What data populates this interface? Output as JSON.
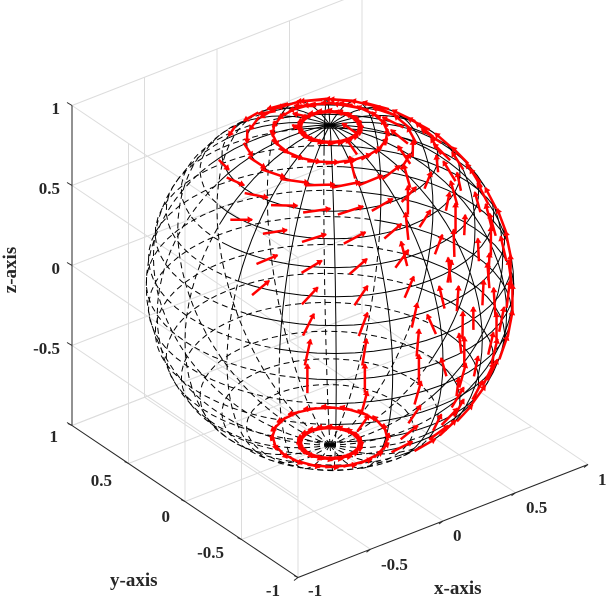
{
  "chart_data": {
    "type": "quiver3d",
    "title": "",
    "description": "Unit sphere wireframe (mesh) with red tangent vector field arrows (quiver3) circulating around the z-axis near the poles and pointing along meridians near the equator",
    "xlabel": "x-axis",
    "ylabel": "y-axis",
    "zlabel": "z-axis",
    "xlim": [
      -1,
      1
    ],
    "ylim": [
      -1,
      1
    ],
    "zlim": [
      -1,
      1
    ],
    "x_ticks": [
      "-1",
      "-0.5",
      "0",
      "0.5",
      "1"
    ],
    "y_ticks": [
      "-1",
      "-0.5",
      "0",
      "0.5",
      "1"
    ],
    "z_ticks": [
      "-0.5",
      "0",
      "0.5",
      "1"
    ],
    "grid": true,
    "view": "3D isometric-style (azimuth ~ -37.5 / 45, elevation ~ 30)",
    "series": [
      {
        "name": "sphere",
        "type": "mesh",
        "color": "#000000",
        "radius": 1
      },
      {
        "name": "vector field",
        "type": "quiver3",
        "color": "#ff0000"
      }
    ]
  },
  "axes": {
    "x_label": "x-axis",
    "y_label": "y-axis",
    "z_label": "z-axis",
    "x_ticks": [
      "-1",
      "-0.5",
      "0",
      "0.5",
      "1"
    ],
    "y_ticks": [
      "-1",
      "-0.5",
      "0",
      "0.5",
      "1"
    ],
    "z_ticks": [
      "1",
      "0.5",
      "0",
      "-0.5"
    ]
  },
  "colors": {
    "arrow": "#ff0000",
    "mesh": "#000000",
    "grid": "#d9d9d9",
    "axis": "#262626"
  }
}
